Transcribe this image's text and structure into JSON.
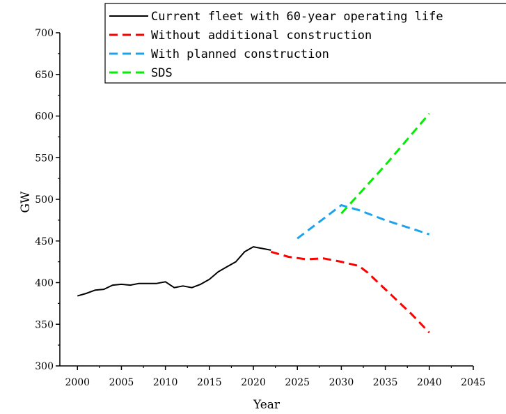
{
  "chart_data": {
    "type": "line",
    "xlabel": "Year",
    "ylabel": "GW",
    "xlim": [
      1998,
      2045
    ],
    "ylim": [
      300,
      700
    ],
    "xticks": [
      2000,
      2005,
      2010,
      2015,
      2020,
      2025,
      2030,
      2035,
      2040,
      2045
    ],
    "yticks": [
      300,
      350,
      400,
      450,
      500,
      550,
      600,
      650,
      700
    ],
    "legend_position": "top-right",
    "series": [
      {
        "name": "Current fleet with 60-year operating life",
        "color": "#000000",
        "style": "solid",
        "x": [
          2000,
          2001,
          2002,
          2003,
          2004,
          2005,
          2006,
          2007,
          2008,
          2009,
          2010,
          2011,
          2012,
          2013,
          2014,
          2015,
          2016,
          2017,
          2018,
          2019,
          2020,
          2021,
          2022
        ],
        "y": [
          384,
          387,
          391,
          392,
          397,
          398,
          397,
          399,
          399,
          399,
          401,
          394,
          396,
          394,
          398,
          404,
          413,
          419,
          425,
          437,
          443,
          441,
          439
        ]
      },
      {
        "name": "Without additional construction",
        "color": "#ff0000",
        "style": "dashed",
        "x": [
          2022,
          2024,
          2026,
          2028,
          2030,
          2032,
          2033,
          2035,
          2038,
          2040
        ],
        "y": [
          437,
          431,
          428,
          429,
          425,
          420,
          412,
          392,
          362,
          340
        ]
      },
      {
        "name": "With planned construction",
        "color": "#1ca3ec",
        "style": "dashed",
        "x": [
          2025,
          2030,
          2032,
          2035,
          2040
        ],
        "y": [
          453,
          493,
          487,
          475,
          458
        ]
      },
      {
        "name": "SDS",
        "color": "#00ee00",
        "style": "dashed",
        "x": [
          2030,
          2035,
          2040
        ],
        "y": [
          483,
          541,
          603
        ]
      }
    ]
  }
}
